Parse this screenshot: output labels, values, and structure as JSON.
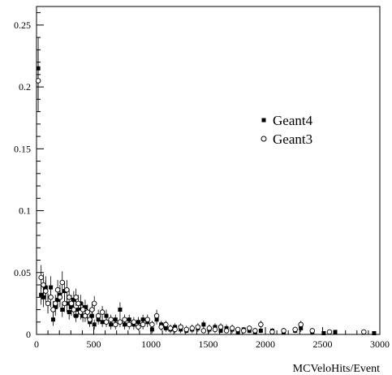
{
  "chart_data": {
    "type": "scatter",
    "xlabel": "MCVeloHits/Event",
    "ylabel": "",
    "xlim": [
      0,
      3000
    ],
    "ylim": [
      0,
      0.265
    ],
    "x_ticks": [
      0,
      500,
      1000,
      1500,
      2000,
      2500,
      3000
    ],
    "y_ticks": [
      0,
      0.05,
      0.1,
      0.15,
      0.2,
      0.25
    ],
    "x_tick_labels": [
      "0",
      "500",
      "1000",
      "1500",
      "2000",
      "2500",
      "3000"
    ],
    "y_tick_labels": [
      "0",
      "0.05",
      "0.1",
      "0.15",
      "0.2",
      "0.25"
    ],
    "grid": false,
    "legend": {
      "position": "center-right",
      "entries": [
        "Geant4",
        "Geant3"
      ]
    },
    "series": [
      {
        "name": "Geant4",
        "marker": "filled-square",
        "points": [
          [
            15,
            0.215,
            0.025
          ],
          [
            40,
            0.032,
            0.008
          ],
          [
            60,
            0.03,
            0.008
          ],
          [
            80,
            0.038,
            0.009
          ],
          [
            100,
            0.025,
            0.008
          ],
          [
            125,
            0.038,
            0.009
          ],
          [
            145,
            0.012,
            0.005
          ],
          [
            165,
            0.022,
            0.007
          ],
          [
            185,
            0.028,
            0.007
          ],
          [
            205,
            0.032,
            0.008
          ],
          [
            225,
            0.02,
            0.006
          ],
          [
            245,
            0.035,
            0.008
          ],
          [
            265,
            0.025,
            0.007
          ],
          [
            285,
            0.018,
            0.006
          ],
          [
            305,
            0.022,
            0.007
          ],
          [
            325,
            0.028,
            0.007
          ],
          [
            345,
            0.015,
            0.005
          ],
          [
            365,
            0.02,
            0.006
          ],
          [
            385,
            0.025,
            0.007
          ],
          [
            405,
            0.015,
            0.005
          ],
          [
            425,
            0.022,
            0.006
          ],
          [
            445,
            0.018,
            0.006
          ],
          [
            465,
            0.01,
            0.004
          ],
          [
            485,
            0.015,
            0.005
          ],
          [
            505,
            0.008,
            0.004
          ],
          [
            540,
            0.012,
            0.004
          ],
          [
            575,
            0.01,
            0.004
          ],
          [
            610,
            0.015,
            0.005
          ],
          [
            650,
            0.008,
            0.004
          ],
          [
            690,
            0.012,
            0.004
          ],
          [
            730,
            0.02,
            0.006
          ],
          [
            770,
            0.008,
            0.004
          ],
          [
            810,
            0.012,
            0.004
          ],
          [
            850,
            0.008,
            0.004
          ],
          [
            890,
            0.01,
            0.004
          ],
          [
            930,
            0.012,
            0.004
          ],
          [
            970,
            0.01,
            0.004
          ],
          [
            1010,
            0.004,
            0.003
          ],
          [
            1050,
            0.012,
            0.004
          ],
          [
            1090,
            0.008,
            0.003
          ],
          [
            1130,
            0.005,
            0.003
          ],
          [
            1170,
            0.004,
            0.003
          ],
          [
            1210,
            0.006,
            0.003
          ],
          [
            1260,
            0.004,
            0.003
          ],
          [
            1310,
            0.003,
            0.002
          ],
          [
            1360,
            0.004,
            0.003
          ],
          [
            1410,
            0.005,
            0.003
          ],
          [
            1460,
            0.008,
            0.003
          ],
          [
            1510,
            0.004,
            0.003
          ],
          [
            1560,
            0.006,
            0.003
          ],
          [
            1610,
            0.003,
            0.002
          ],
          [
            1660,
            0.005,
            0.003
          ],
          [
            1710,
            0.004,
            0.003
          ],
          [
            1760,
            0.002,
            0.002
          ],
          [
            1810,
            0.004,
            0.002
          ],
          [
            1860,
            0.003,
            0.002
          ],
          [
            1910,
            0.002,
            0.002
          ],
          [
            1960,
            0.003,
            0.002
          ],
          [
            2060,
            0.003,
            0.002
          ],
          [
            2160,
            0.002,
            0.002
          ],
          [
            2260,
            0.003,
            0.002
          ],
          [
            2310,
            0.005,
            0.003
          ],
          [
            2410,
            0.002,
            0.002
          ],
          [
            2510,
            0.001,
            0.001
          ],
          [
            2610,
            0.002,
            0.001
          ],
          [
            2950,
            0.001,
            0.001
          ]
        ]
      },
      {
        "name": "Geant3",
        "marker": "open-circle",
        "points": [
          [
            15,
            0.205,
            0.025
          ],
          [
            40,
            0.046,
            0.01
          ],
          [
            60,
            0.04,
            0.009
          ],
          [
            80,
            0.035,
            0.009
          ],
          [
            100,
            0.025,
            0.008
          ],
          [
            125,
            0.03,
            0.008
          ],
          [
            145,
            0.02,
            0.007
          ],
          [
            165,
            0.025,
            0.007
          ],
          [
            185,
            0.036,
            0.008
          ],
          [
            205,
            0.03,
            0.008
          ],
          [
            225,
            0.042,
            0.009
          ],
          [
            245,
            0.025,
            0.007
          ],
          [
            265,
            0.036,
            0.008
          ],
          [
            285,
            0.03,
            0.007
          ],
          [
            305,
            0.025,
            0.007
          ],
          [
            325,
            0.02,
            0.006
          ],
          [
            345,
            0.03,
            0.007
          ],
          [
            365,
            0.025,
            0.007
          ],
          [
            385,
            0.018,
            0.006
          ],
          [
            405,
            0.02,
            0.006
          ],
          [
            425,
            0.015,
            0.005
          ],
          [
            445,
            0.018,
            0.006
          ],
          [
            465,
            0.012,
            0.004
          ],
          [
            485,
            0.02,
            0.006
          ],
          [
            505,
            0.025,
            0.006
          ],
          [
            540,
            0.015,
            0.005
          ],
          [
            575,
            0.018,
            0.005
          ],
          [
            610,
            0.01,
            0.004
          ],
          [
            650,
            0.012,
            0.004
          ],
          [
            690,
            0.008,
            0.004
          ],
          [
            730,
            0.01,
            0.004
          ],
          [
            770,
            0.012,
            0.004
          ],
          [
            810,
            0.008,
            0.004
          ],
          [
            850,
            0.01,
            0.004
          ],
          [
            890,
            0.006,
            0.003
          ],
          [
            930,
            0.008,
            0.004
          ],
          [
            970,
            0.012,
            0.004
          ],
          [
            1010,
            0.008,
            0.003
          ],
          [
            1050,
            0.015,
            0.005
          ],
          [
            1090,
            0.006,
            0.003
          ],
          [
            1130,
            0.008,
            0.003
          ],
          [
            1170,
            0.005,
            0.003
          ],
          [
            1210,
            0.004,
            0.003
          ],
          [
            1260,
            0.006,
            0.003
          ],
          [
            1310,
            0.004,
            0.003
          ],
          [
            1360,
            0.005,
            0.003
          ],
          [
            1410,
            0.006,
            0.003
          ],
          [
            1460,
            0.003,
            0.002
          ],
          [
            1510,
            0.005,
            0.003
          ],
          [
            1560,
            0.004,
            0.003
          ],
          [
            1610,
            0.006,
            0.003
          ],
          [
            1660,
            0.003,
            0.002
          ],
          [
            1710,
            0.005,
            0.003
          ],
          [
            1760,
            0.004,
            0.002
          ],
          [
            1810,
            0.003,
            0.002
          ],
          [
            1860,
            0.005,
            0.002
          ],
          [
            1910,
            0.003,
            0.002
          ],
          [
            1960,
            0.008,
            0.003
          ],
          [
            2060,
            0.002,
            0.002
          ],
          [
            2160,
            0.003,
            0.002
          ],
          [
            2260,
            0.004,
            0.002
          ],
          [
            2310,
            0.008,
            0.003
          ],
          [
            2410,
            0.003,
            0.002
          ],
          [
            2560,
            0.002,
            0.001
          ],
          [
            2860,
            0.002,
            0.001
          ]
        ]
      }
    ]
  }
}
